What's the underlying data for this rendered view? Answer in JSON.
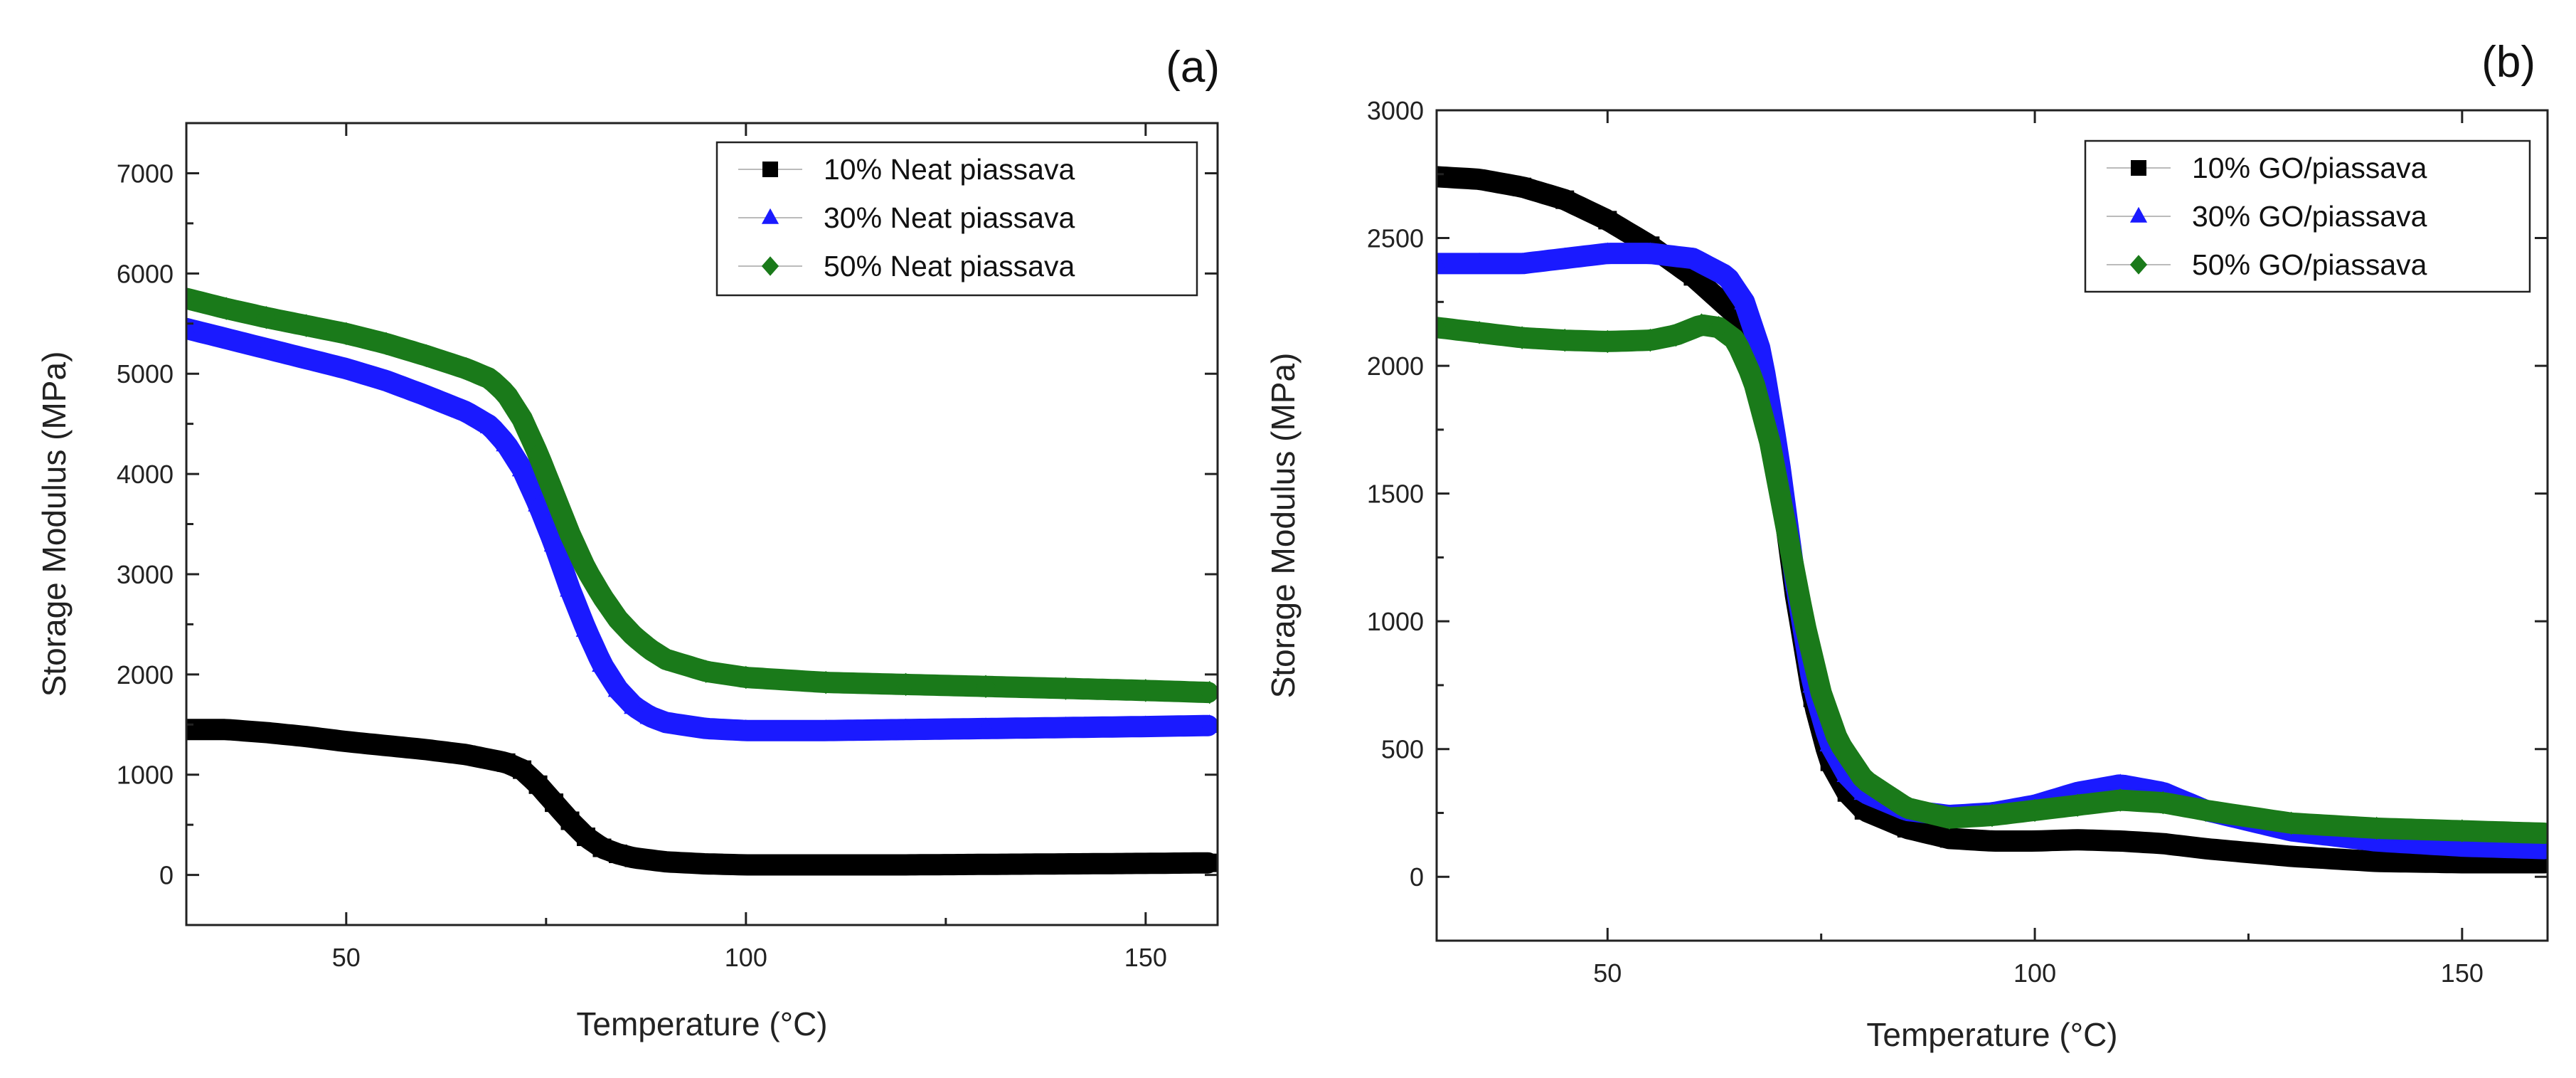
{
  "chart_data": [
    {
      "type": "line",
      "panel_label": "(a)",
      "xlabel": "Temperature (°C)",
      "ylabel": "Storage Modulus (MPa)",
      "xlim": [
        30,
        159
      ],
      "ylim": [
        -500,
        7500
      ],
      "xticks": [
        50,
        100,
        150
      ],
      "yticks": [
        0,
        1000,
        2000,
        3000,
        4000,
        5000,
        6000,
        7000
      ],
      "legend_position": "top-right",
      "series": [
        {
          "name": "10% Neat piassava",
          "color": "#000000",
          "marker": "square",
          "x": [
            30,
            35,
            40,
            45,
            50,
            55,
            60,
            65,
            70,
            72,
            74,
            76,
            78,
            80,
            82,
            84,
            86,
            88,
            90,
            95,
            100,
            110,
            120,
            130,
            140,
            150,
            158
          ],
          "y": [
            1450,
            1450,
            1420,
            1380,
            1330,
            1290,
            1250,
            1200,
            1120,
            1050,
            900,
            720,
            540,
            380,
            270,
            210,
            170,
            150,
            130,
            110,
            100,
            100,
            100,
            105,
            110,
            115,
            120
          ]
        },
        {
          "name": "30% Neat piassava",
          "color": "#1a1aff",
          "marker": "triangle",
          "x": [
            30,
            35,
            40,
            45,
            50,
            55,
            60,
            65,
            68,
            70,
            72,
            74,
            76,
            78,
            80,
            82,
            84,
            86,
            88,
            90,
            95,
            100,
            110,
            120,
            130,
            140,
            150,
            158
          ],
          "y": [
            5450,
            5350,
            5250,
            5150,
            5050,
            4930,
            4780,
            4620,
            4480,
            4300,
            4050,
            3700,
            3300,
            2850,
            2450,
            2100,
            1850,
            1680,
            1580,
            1520,
            1460,
            1440,
            1440,
            1450,
            1460,
            1470,
            1480,
            1490
          ]
        },
        {
          "name": "50% Neat piassava",
          "color": "#1a7a1a",
          "marker": "diamond",
          "x": [
            30,
            35,
            40,
            45,
            50,
            55,
            60,
            65,
            68,
            70,
            72,
            74,
            76,
            78,
            80,
            82,
            84,
            86,
            88,
            90,
            95,
            100,
            110,
            120,
            130,
            140,
            150,
            158
          ],
          "y": [
            5750,
            5650,
            5560,
            5480,
            5400,
            5300,
            5180,
            5050,
            4950,
            4800,
            4550,
            4200,
            3800,
            3400,
            3050,
            2780,
            2550,
            2380,
            2250,
            2150,
            2030,
            1970,
            1920,
            1900,
            1880,
            1860,
            1840,
            1820
          ]
        }
      ]
    },
    {
      "type": "line",
      "panel_label": "(b)",
      "xlabel": "Temperature (°C)",
      "ylabel": "Storage Modulus (MPa)",
      "xlim": [
        30,
        160
      ],
      "ylim": [
        -250,
        3000
      ],
      "xticks": [
        50,
        100,
        150
      ],
      "yticks": [
        0,
        500,
        1000,
        1500,
        2000,
        2500,
        3000
      ],
      "legend_position": "top-right",
      "series": [
        {
          "name": "10% GO/piassava",
          "color": "#000000",
          "marker": "square",
          "x": [
            30,
            35,
            40,
            45,
            50,
            55,
            60,
            65,
            68,
            70,
            72,
            74,
            76,
            78,
            80,
            85,
            90,
            95,
            100,
            105,
            110,
            115,
            120,
            130,
            140,
            150,
            160
          ],
          "y": [
            2740,
            2730,
            2700,
            2650,
            2570,
            2470,
            2350,
            2200,
            2000,
            1600,
            1100,
            700,
            450,
            330,
            260,
            190,
            150,
            140,
            140,
            145,
            140,
            130,
            110,
            80,
            60,
            55,
            55
          ]
        },
        {
          "name": "30% GO/piassava",
          "color": "#1a1aff",
          "marker": "triangle",
          "x": [
            30,
            35,
            40,
            45,
            50,
            55,
            60,
            64,
            66,
            68,
            70,
            72,
            74,
            76,
            78,
            80,
            85,
            90,
            95,
            100,
            105,
            110,
            115,
            120,
            130,
            140,
            150,
            160
          ],
          "y": [
            2400,
            2400,
            2400,
            2420,
            2440,
            2440,
            2420,
            2350,
            2250,
            2050,
            1650,
            1150,
            750,
            520,
            400,
            330,
            260,
            240,
            250,
            280,
            330,
            360,
            330,
            260,
            180,
            140,
            120,
            110
          ]
        },
        {
          "name": "50% GO/piassava",
          "color": "#1a7a1a",
          "marker": "diamond",
          "x": [
            30,
            35,
            40,
            45,
            50,
            55,
            58,
            61,
            63,
            65,
            67,
            69,
            71,
            73,
            75,
            77,
            80,
            85,
            90,
            95,
            100,
            105,
            110,
            115,
            120,
            130,
            140,
            150,
            160
          ],
          "y": [
            2150,
            2130,
            2110,
            2100,
            2095,
            2100,
            2120,
            2160,
            2150,
            2100,
            1950,
            1700,
            1350,
            1000,
            720,
            530,
            380,
            270,
            230,
            240,
            260,
            280,
            300,
            290,
            260,
            210,
            190,
            180,
            170
          ]
        }
      ]
    }
  ]
}
